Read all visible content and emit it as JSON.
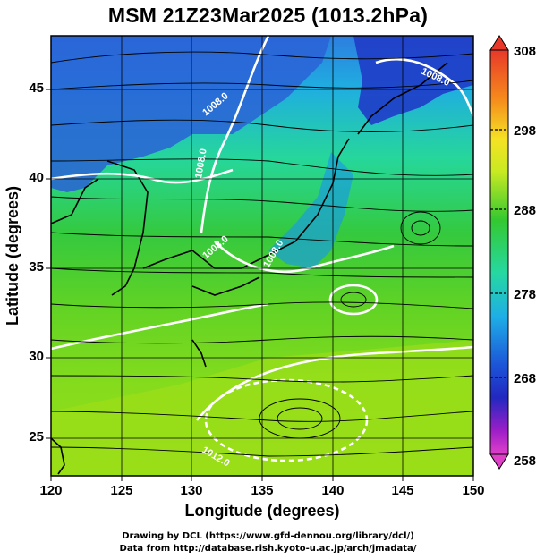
{
  "title": "MSM 21Z23Mar2025 (1013.2hPa)",
  "chart_data": {
    "type": "map",
    "xlabel": "Longitude (degrees)",
    "ylabel": "Latitude  (degrees)",
    "xlim": [
      120,
      150
    ],
    "ylim": [
      22.4,
      47.6
    ],
    "x_ticks": [
      "120",
      "125",
      "130",
      "135",
      "140",
      "145",
      "150"
    ],
    "y_ticks": [
      "25",
      "30",
      "35",
      "40",
      "45"
    ],
    "grid": true,
    "colorbar": {
      "min": 258,
      "max": 308,
      "ticks": [
        "308",
        "298",
        "288",
        "278",
        "268",
        "258"
      ]
    },
    "isobar_labels": [
      "1008.0",
      "1008.0",
      "1008.0",
      "1008.0",
      "1008.0",
      "1012.0"
    ]
  },
  "credits": {
    "line1": "Drawing by DCL (https://www.gfd-dennou.org/library/dcl/)",
    "line2": "Data from http://database.rish.kyoto-u.ac.jp/arch/jmadata/"
  }
}
